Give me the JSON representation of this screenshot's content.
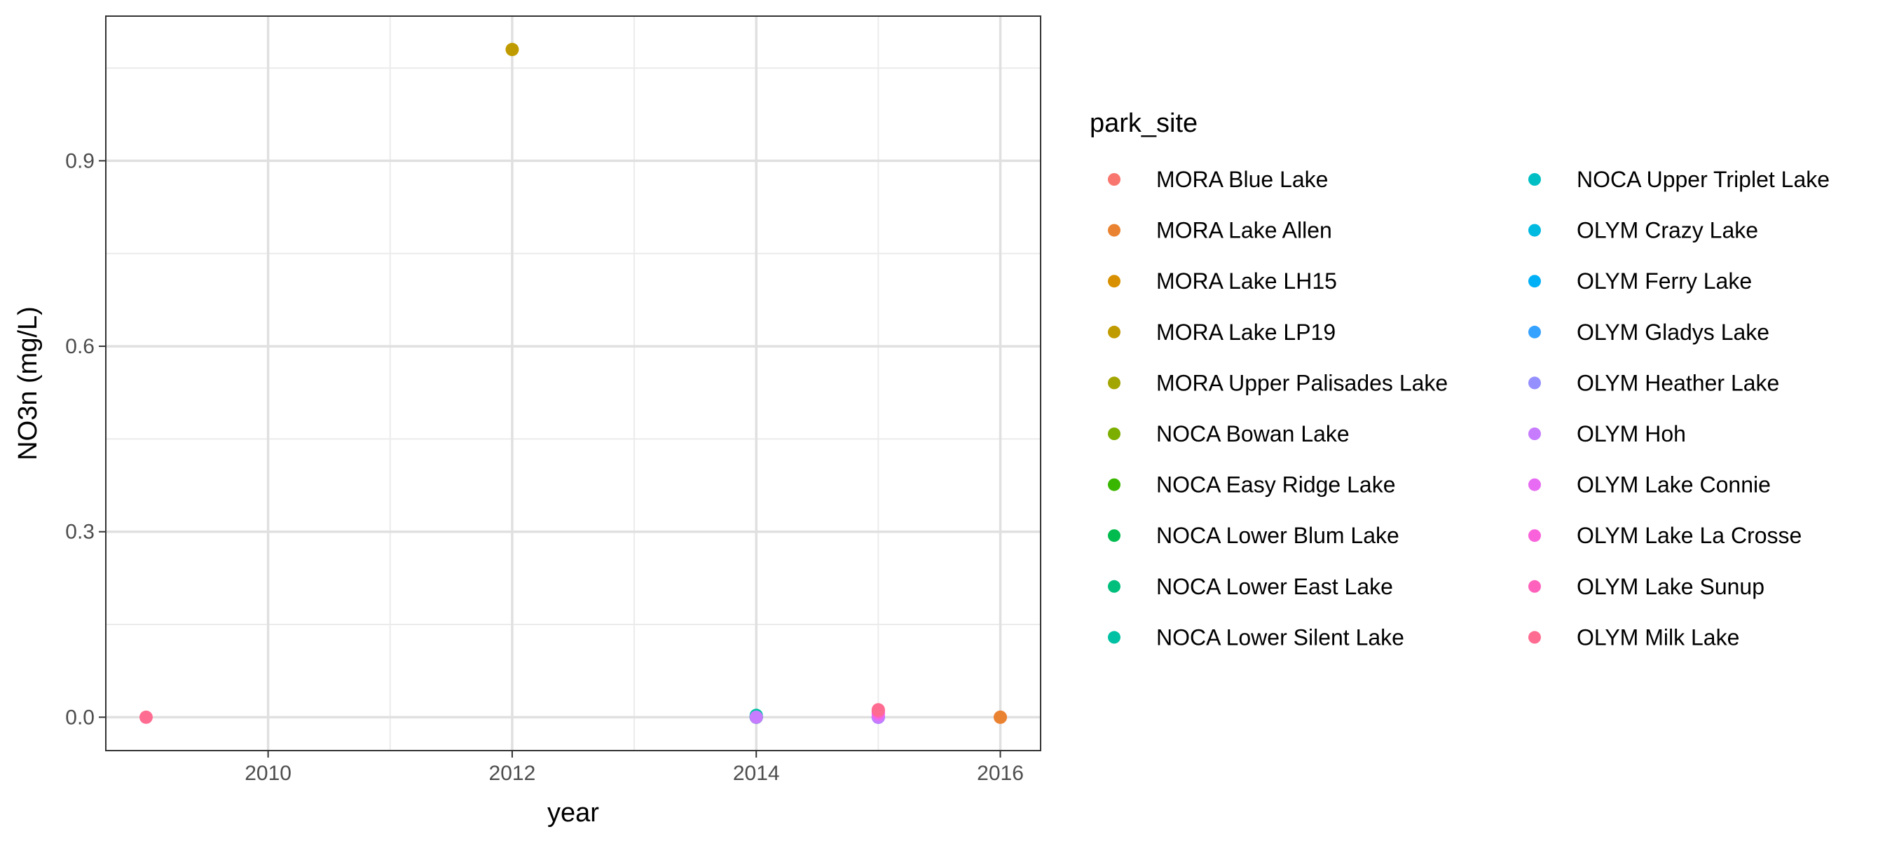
{
  "chart_data": {
    "type": "scatter",
    "xlabel": "year",
    "ylabel": "NO3n (mg/L)",
    "xlim": [
      2008.67,
      2016.33
    ],
    "ylim": [
      -0.054,
      1.134
    ],
    "x_ticks": [
      2010,
      2012,
      2014,
      2016
    ],
    "x_minor_ticks": [
      2011,
      2013,
      2015
    ],
    "y_ticks": [
      0.0,
      0.3,
      0.6,
      0.9
    ],
    "y_tick_labels": [
      "0.0",
      "0.3",
      "0.6",
      "0.9"
    ],
    "y_minor_ticks": [
      0.15,
      0.45,
      0.75,
      1.05
    ],
    "grid": true,
    "legend": {
      "title": "park_site",
      "placement": "right"
    },
    "series": [
      {
        "name": "MORA Blue Lake",
        "color": "#F8766D",
        "points": [
          [
            2016,
            0.0
          ]
        ]
      },
      {
        "name": "MORA Lake Allen",
        "color": "#EA8331",
        "points": [
          [
            2016,
            0.0
          ]
        ]
      },
      {
        "name": "MORA Lake LH15",
        "color": "#D89000",
        "points": []
      },
      {
        "name": "MORA Lake LP19",
        "color": "#C09B00",
        "points": [
          [
            2012,
            1.08
          ]
        ]
      },
      {
        "name": "MORA Upper Palisades Lake",
        "color": "#A3A500",
        "points": []
      },
      {
        "name": "NOCA Bowan Lake",
        "color": "#7CAE00",
        "points": [
          [
            2014,
            0.0
          ]
        ]
      },
      {
        "name": "NOCA Easy Ridge Lake",
        "color": "#39B600",
        "points": [
          [
            2014,
            0.0
          ]
        ]
      },
      {
        "name": "NOCA Lower Blum Lake",
        "color": "#00BB4E",
        "points": [
          [
            2014,
            0.0
          ]
        ]
      },
      {
        "name": "NOCA Lower East Lake",
        "color": "#00BF7D",
        "points": [
          [
            2014,
            0.0
          ]
        ]
      },
      {
        "name": "NOCA Lower Silent Lake",
        "color": "#00C1A3",
        "points": [
          [
            2014,
            0.003
          ]
        ]
      },
      {
        "name": "NOCA Upper Triplet Lake",
        "color": "#00BFC4",
        "points": [
          [
            2014,
            0.0
          ]
        ]
      },
      {
        "name": "OLYM Crazy Lake",
        "color": "#00BAE0",
        "points": [
          [
            2015,
            0.0
          ]
        ]
      },
      {
        "name": "OLYM Ferry Lake",
        "color": "#00B0F6",
        "points": [
          [
            2015,
            0.0
          ]
        ]
      },
      {
        "name": "OLYM Gladys Lake",
        "color": "#35A2FF",
        "points": [
          [
            2015,
            0.0
          ]
        ]
      },
      {
        "name": "OLYM Heather Lake",
        "color": "#9590FF",
        "points": [
          [
            2015,
            0.0
          ]
        ]
      },
      {
        "name": "OLYM Hoh",
        "color": "#C77CFF",
        "points": [
          [
            2014,
            0.0
          ],
          [
            2015,
            0.0
          ]
        ]
      },
      {
        "name": "OLYM Lake Connie",
        "color": "#E76BF3",
        "points": [
          [
            2015,
            0.005
          ]
        ]
      },
      {
        "name": "OLYM Lake La Crosse",
        "color": "#FA62DB",
        "points": [
          [
            2015,
            0.008
          ]
        ]
      },
      {
        "name": "OLYM Lake Sunup",
        "color": "#FF62BC",
        "points": [
          [
            2015,
            0.01
          ]
        ]
      },
      {
        "name": "OLYM Milk Lake",
        "color": "#FF6C91",
        "points": [
          [
            2009,
            0.0
          ],
          [
            2015,
            0.012
          ]
        ]
      }
    ]
  }
}
